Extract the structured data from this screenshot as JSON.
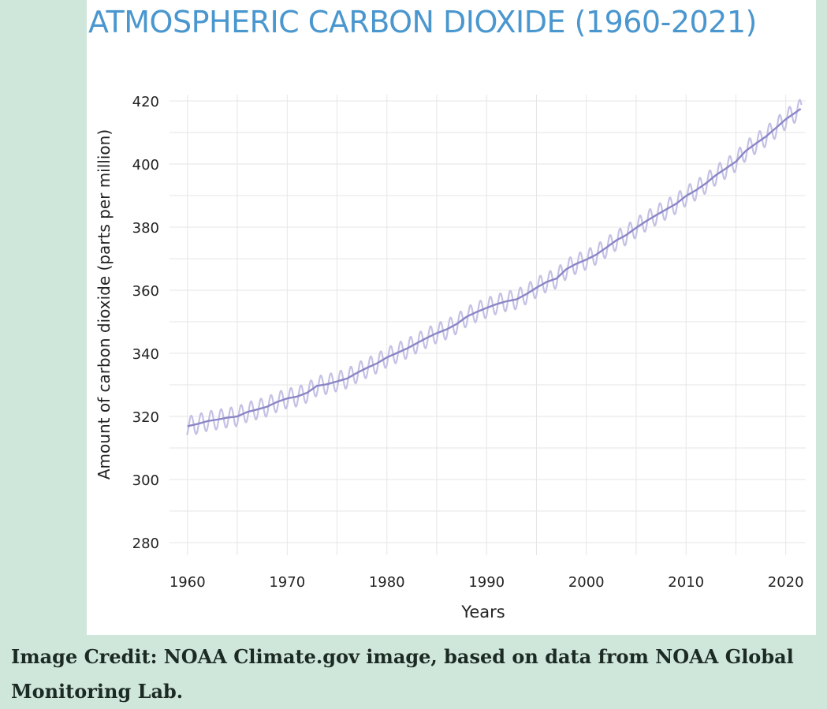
{
  "caption": "Image Credit: NOAA Climate.gov image, based on data from NOAA Global Monitoring Lab.",
  "colors": {
    "background": "#cfe6da",
    "panel": "#ffffff",
    "title": "#4a97cf",
    "trend_line": "#8b86c6",
    "monthly_line": "#c4c2e4",
    "grid": "#e6e6e6",
    "text": "#222222"
  },
  "chart_data": {
    "type": "line",
    "title": "ATMOSPHERIC CARBON DIOXIDE (1960-2021)",
    "xlabel": "Years",
    "ylabel": "Amount of carbon dioxide (parts per million)",
    "xlim": [
      1958.2,
      2022.0
    ],
    "ylim": [
      276,
      422
    ],
    "x_ticks": [
      1960,
      1970,
      1980,
      1990,
      2000,
      2010,
      2020
    ],
    "y_ticks": [
      280,
      300,
      320,
      340,
      360,
      380,
      400,
      420
    ],
    "grid": true,
    "legend": "none",
    "seasonal_amplitude_ppm": 3.1,
    "series": [
      {
        "x": [
          1960,
          1961,
          1962,
          1963,
          1964,
          1965,
          1966,
          1967,
          1968,
          1969,
          1970,
          1971,
          1972,
          1973,
          1974,
          1975,
          1976,
          1977,
          1978,
          1979,
          1980,
          1981,
          1982,
          1983,
          1984,
          1985,
          1986,
          1987,
          1988,
          1989,
          1990,
          1991,
          1992,
          1993,
          1994,
          1995,
          1996,
          1997,
          1998,
          1999,
          2000,
          2001,
          2002,
          2003,
          2004,
          2005,
          2006,
          2007,
          2008,
          2009,
          2010,
          2011,
          2012,
          2013,
          2014,
          2015,
          2016,
          2017,
          2018,
          2019,
          2020,
          2021
        ],
        "values": [
          316.9,
          317.6,
          318.5,
          319.0,
          319.6,
          320.0,
          321.4,
          322.2,
          323.1,
          324.6,
          325.7,
          326.3,
          327.5,
          329.7,
          330.2,
          331.1,
          332.0,
          333.8,
          335.4,
          336.8,
          338.7,
          340.1,
          341.5,
          343.2,
          344.9,
          346.4,
          347.6,
          349.3,
          351.6,
          353.1,
          354.4,
          355.6,
          356.5,
          357.1,
          358.8,
          360.8,
          362.6,
          363.7,
          366.7,
          368.4,
          369.7,
          371.3,
          373.5,
          375.8,
          377.5,
          379.8,
          381.9,
          383.8,
          385.6,
          387.4,
          389.9,
          391.7,
          393.9,
          396.5,
          398.6,
          400.8,
          404.2,
          406.5,
          408.7,
          411.4,
          414.2,
          416.4
        ]
      }
    ]
  }
}
